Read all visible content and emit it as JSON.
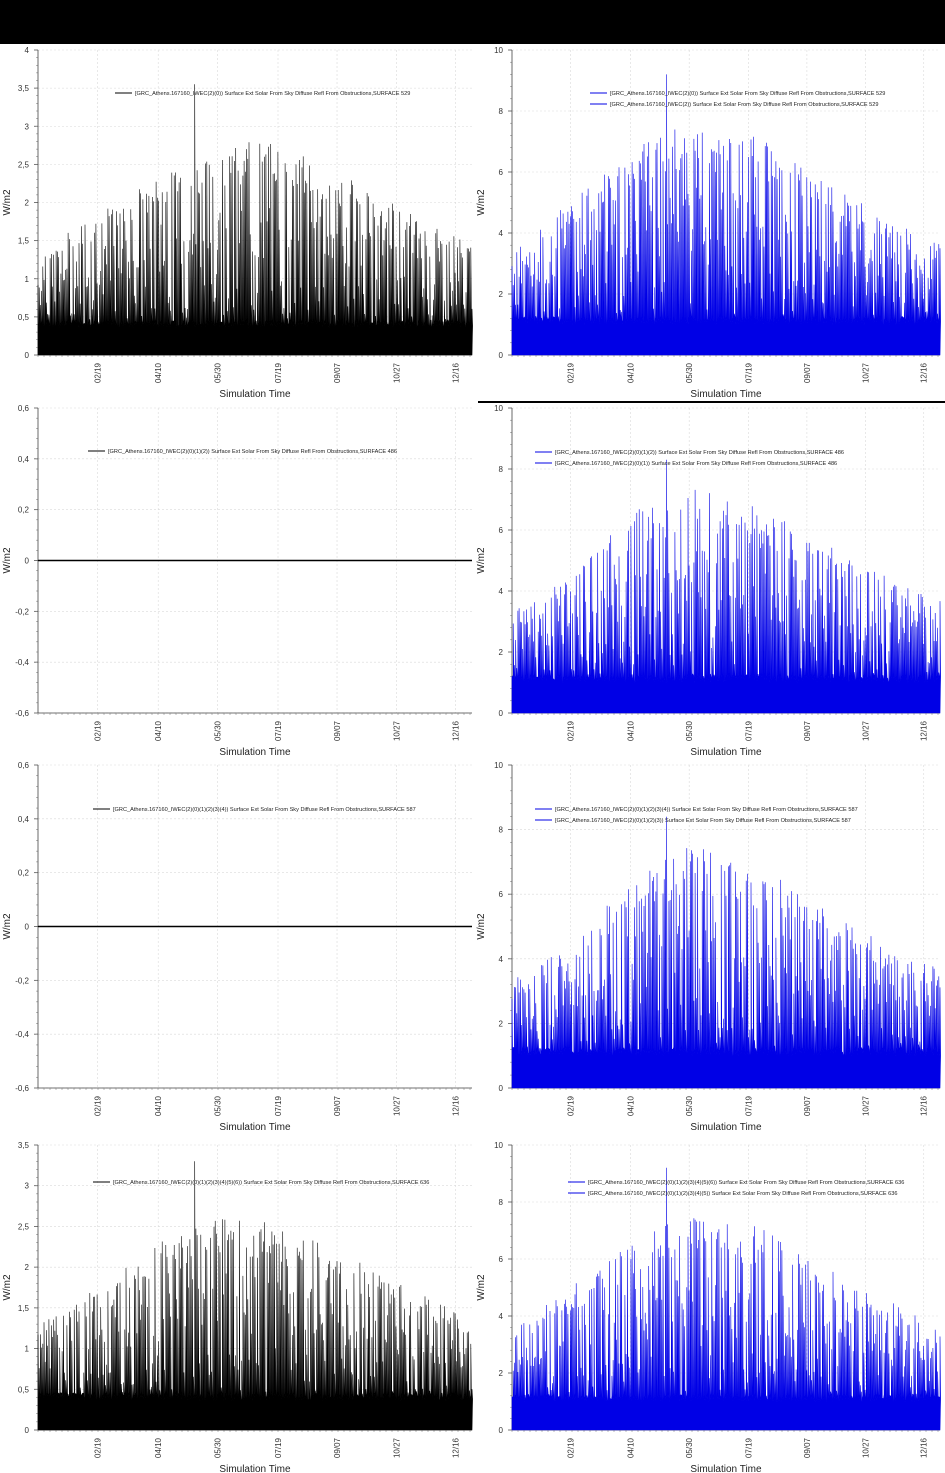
{
  "x_ticks": [
    "02/19",
    "04/10",
    "05/30",
    "07/19",
    "09/07",
    "10/27",
    "12/16"
  ],
  "colors": {
    "black": "#000000",
    "blue": "#0000e6"
  },
  "charts": [
    {
      "type": "area",
      "xlabel": "Simulation Time",
      "ylabel": "W/m2",
      "ylim": [
        0,
        4
      ],
      "yticks": [
        "0",
        "0,5",
        "1",
        "1,5",
        "2",
        "2,5",
        "3",
        "3,5",
        "4"
      ],
      "color": "black",
      "base": 0.4,
      "envelope": [
        1.35,
        1.6,
        1.85,
        2.1,
        2.3,
        2.5,
        2.7,
        2.75,
        2.7,
        2.5,
        2.3,
        2.05,
        1.85,
        1.6,
        1.45
      ],
      "peak": 3.55,
      "legend": [
        "[GRC_Athens.167160_IWEC(2)(0)) Surface Ext Solar From Sky Diffuse Refl From Obstructions,SURFACE 529"
      ]
    },
    {
      "type": "area",
      "xlabel": "Simulation Time",
      "ylabel": "W/m2",
      "ylim": [
        0,
        10
      ],
      "yticks": [
        "0",
        "2",
        "4",
        "6",
        "8",
        "10"
      ],
      "color": "blue",
      "base": 1.1,
      "envelope": [
        3.5,
        4.2,
        5.0,
        5.8,
        6.6,
        7.2,
        7.4,
        7.2,
        7.0,
        6.5,
        5.8,
        5.1,
        4.6,
        4.1,
        3.6
      ],
      "peak": 9.2,
      "legend": [
        "[GRC_Athens.167160_IWEC(2)(0)) Surface Ext Solar From Sky Diffuse Refl From Obstructions,SURFACE 529",
        "[GRC_Athens.167160_IWEC(2)) Surface Ext Solar From Sky Diffuse Refl From Obstructions,SURFACE 529"
      ]
    },
    {
      "type": "line",
      "xlabel": "Simulation Time",
      "ylabel": "W/m2",
      "ylim": [
        -0.6,
        0.6
      ],
      "yticks": [
        "-0,6",
        "-0,4",
        "-0,2",
        "0",
        "0,2",
        "0,4",
        "0,6"
      ],
      "color": "black",
      "constant": 0,
      "legend": [
        "[GRC_Athens.167160_IWEC(2)(0)(1)(2)) Surface Ext Solar From Sky Diffuse Refl From Obstructions,SURFACE 486"
      ]
    },
    {
      "type": "area",
      "xlabel": "Simulation Time",
      "ylabel": "W/m2",
      "ylim": [
        0,
        10
      ],
      "yticks": [
        "0",
        "2",
        "4",
        "6",
        "8",
        "10"
      ],
      "color": "blue",
      "base": 1.1,
      "envelope": [
        3.3,
        3.8,
        4.5,
        5.5,
        6.5,
        7.0,
        7.3,
        7.0,
        6.6,
        6.2,
        5.6,
        5.0,
        4.5,
        4.0,
        3.6
      ],
      "peak": 8.3,
      "legend": [
        "[GRC_Athens.167160_IWEC(2)(0)(1)(2)) Surface Ext Solar From Sky Diffuse Refl From Obstructions,SURFACE 486",
        "[GRC_Athens.167160_IWEC(2)(0)(1)) Surface Ext Solar From Sky Diffuse Refl From Obstructions,SURFACE 486"
      ]
    },
    {
      "type": "line",
      "xlabel": "Simulation Time",
      "ylabel": "W/m2",
      "ylim": [
        -0.6,
        0.6
      ],
      "yticks": [
        "-0,6",
        "-0,4",
        "-0,2",
        "0",
        "0,2",
        "0,4",
        "0,6"
      ],
      "color": "black",
      "constant": 0,
      "legend": [
        "[GRC_Athens.167160_IWEC(2)(0)(1)(2)(3)(4)) Surface Ext Solar From Sky Diffuse Refl From Obstructions,SURFACE 587"
      ]
    },
    {
      "type": "area",
      "xlabel": "Simulation Time",
      "ylabel": "W/m2",
      "ylim": [
        0,
        10
      ],
      "yticks": [
        "0",
        "2",
        "4",
        "6",
        "8",
        "10"
      ],
      "color": "blue",
      "base": 1.1,
      "envelope": [
        3.3,
        3.8,
        4.5,
        5.5,
        6.5,
        7.0,
        7.4,
        7.0,
        6.6,
        6.3,
        5.6,
        5.0,
        4.5,
        4.0,
        3.6
      ],
      "peak": 8.4,
      "legend": [
        "[GRC_Athens.167160_IWEC(2)(0)(1)(2)(3)(4)) Surface Ext Solar From Sky Diffuse Refl From Obstructions,SURFACE 587",
        "[GRC_Athens.167160_IWEC(2)(0)(1)(2)(3)) Surface Ext Solar From Sky Diffuse Refl From Obstructions,SURFACE 587"
      ]
    },
    {
      "type": "area",
      "xlabel": "Simulation Time",
      "ylabel": "W/m2",
      "ylim": [
        0,
        3.5
      ],
      "yticks": [
        "0",
        "0,5",
        "1",
        "1,5",
        "2",
        "2,5",
        "3",
        "3,5"
      ],
      "color": "black",
      "base": 0.4,
      "envelope": [
        1.25,
        1.5,
        1.75,
        2.0,
        2.3,
        2.5,
        2.6,
        2.55,
        2.4,
        2.3,
        2.1,
        1.9,
        1.7,
        1.55,
        1.4
      ],
      "peak": 3.3,
      "legend": [
        "[GRC_Athens.167160_IWEC(2)(0)(1)(2)(3)(4)(5)(6)) Surface Ext Solar From Sky Diffuse Refl From Obstructions,SURFACE 636"
      ]
    },
    {
      "type": "area",
      "xlabel": "Simulation Time",
      "ylabel": "W/m2",
      "ylim": [
        0,
        10
      ],
      "yticks": [
        "0",
        "2",
        "4",
        "6",
        "8",
        "10"
      ],
      "color": "blue",
      "base": 1.1,
      "envelope": [
        3.5,
        4.2,
        5.0,
        5.8,
        6.6,
        7.2,
        7.4,
        7.2,
        7.0,
        6.5,
        5.8,
        5.1,
        4.6,
        4.1,
        3.6
      ],
      "peak": 9.2,
      "legend": [
        "[GRC_Athens.167160_IWEC(2)(0)(1)(2)(3)(4)(5)(6)) Surface Ext Solar From Sky Diffuse Refl From Obstructions,SURFACE 636",
        "[GRC_Athens.167160_IWEC(2)(0)(1)(2)(3)(4)(5)) Surface Ext Solar From Sky Diffuse Refl From Obstructions,SURFACE 636"
      ]
    }
  ]
}
